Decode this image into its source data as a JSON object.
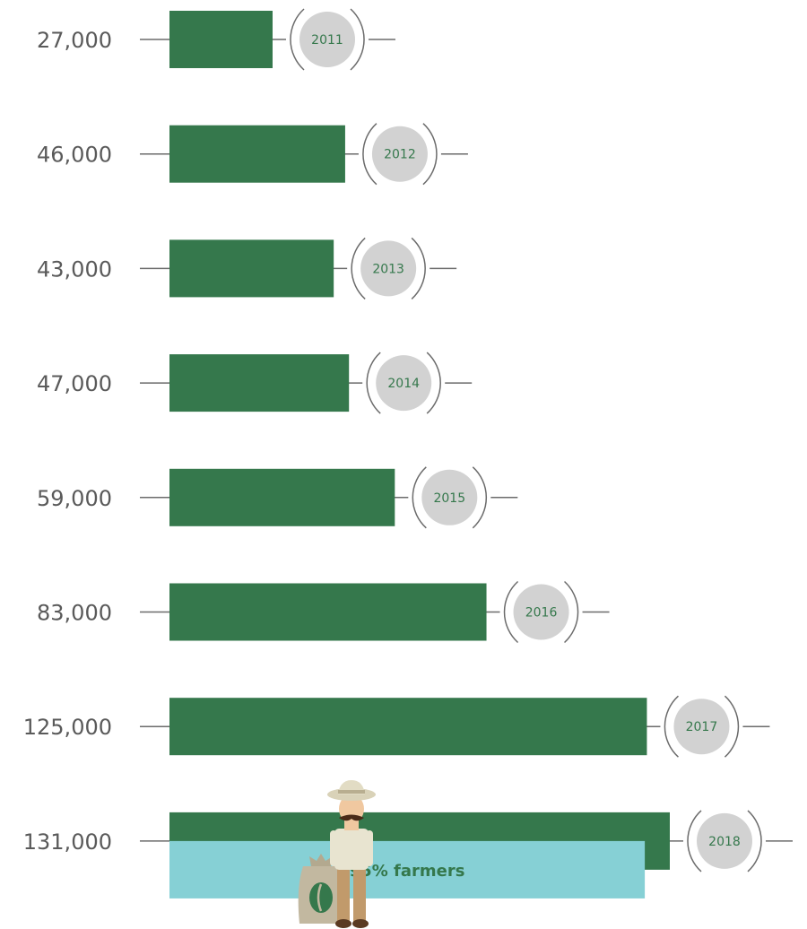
{
  "chart_data": {
    "type": "bar",
    "orientation": "horizontal",
    "categories": [
      "2011",
      "2012",
      "2013",
      "2014",
      "2015",
      "2016",
      "2017",
      "2018"
    ],
    "values": [
      27000,
      46000,
      43000,
      47000,
      59000,
      83000,
      125000,
      131000
    ],
    "value_labels": [
      "27,000",
      "46,000",
      "43,000",
      "47,000",
      "59,000",
      "83,000",
      "125,000",
      "131,000"
    ],
    "sub_bar": {
      "category": "2018",
      "fraction": 0.95,
      "label": "95% farmers"
    },
    "colors": {
      "bar": "#35784c",
      "sub_bar": "#86d0d5",
      "year_circle": "#d2d2d2",
      "year_text": "#35784c",
      "line": "#6b6b6b"
    },
    "icons": [
      "farmer-icon",
      "coffee-sack-icon"
    ]
  }
}
